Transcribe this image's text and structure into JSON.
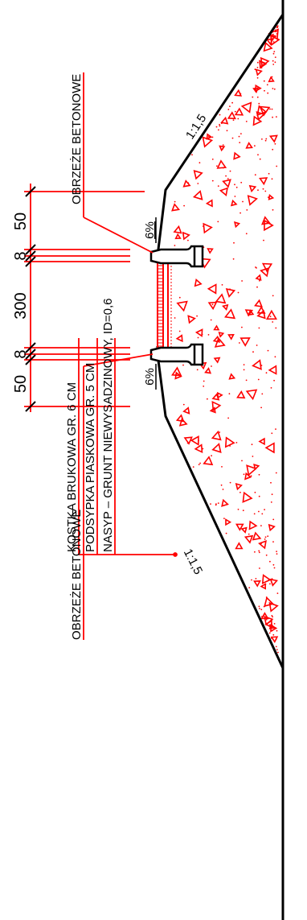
{
  "dimensions": [
    "50",
    "8",
    "300",
    "8",
    "50"
  ],
  "labels": {
    "curb_top": "OBRZEŻE BETONOWE",
    "curb_bottom": "OBRZEŻE BETONOWE",
    "layer_1": "KOSTKA BRUKOWA GR. 6 CM",
    "layer_2": "PODSYPKA PIASKOWA GR. 5 CM",
    "layer_3": "NASYP – GRUNT NIEWYSADZINOWY, ID=0,6",
    "slope_top": "1:1,5",
    "slope_bottom": "1:1,5",
    "crossfall_top": "6%",
    "crossfall_bottom": "6%"
  },
  "colors": {
    "line": "#000000",
    "accent": "#ff0000"
  }
}
